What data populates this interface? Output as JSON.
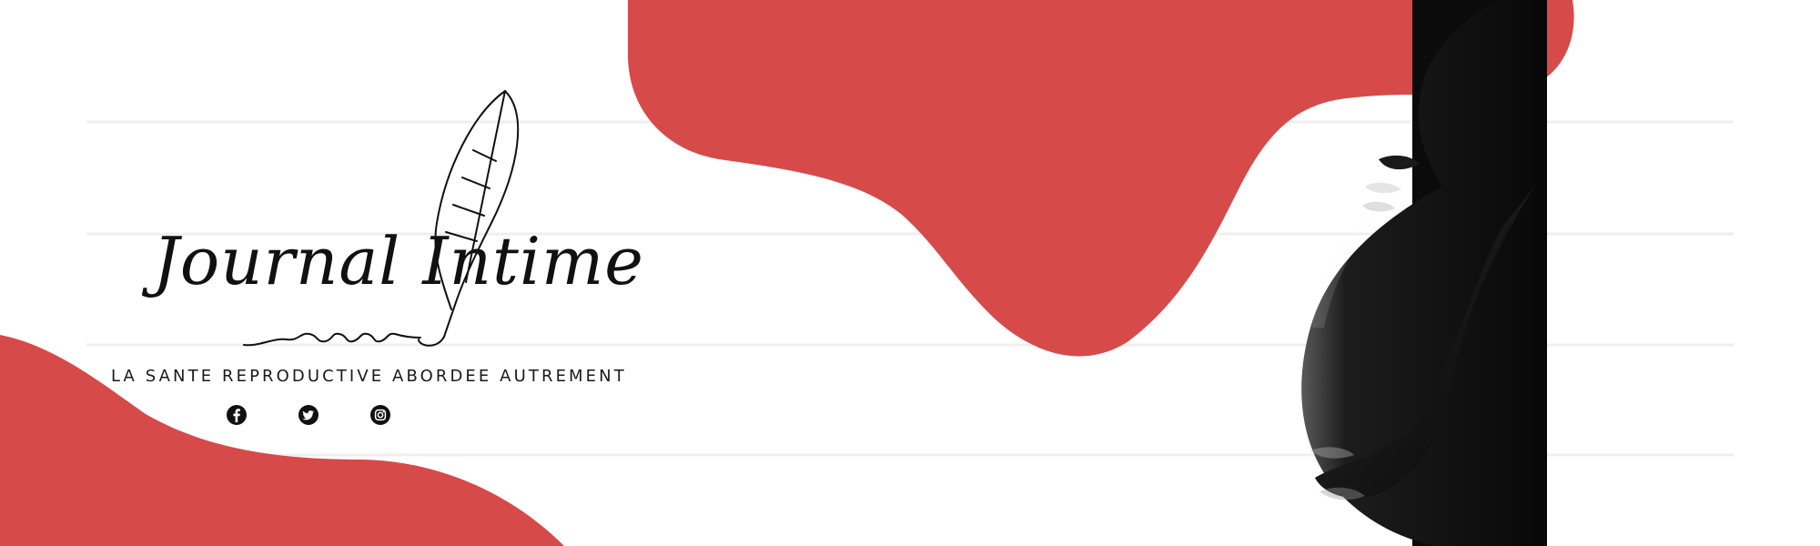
{
  "brand": {
    "name": "Journal Intime",
    "tagline": "LA SANTE REPRODUCTIVE ABORDEE AUTREMENT"
  },
  "social": [
    {
      "network": "Facebook",
      "icon": "facebook-icon"
    },
    {
      "network": "Twitter",
      "icon": "twitter-icon"
    },
    {
      "network": "Instagram",
      "icon": "instagram-icon"
    }
  ],
  "colors": {
    "accent": "#d64a4a",
    "text": "#111111",
    "background": "#ffffff",
    "photo_dark": "#0e0e0e"
  }
}
